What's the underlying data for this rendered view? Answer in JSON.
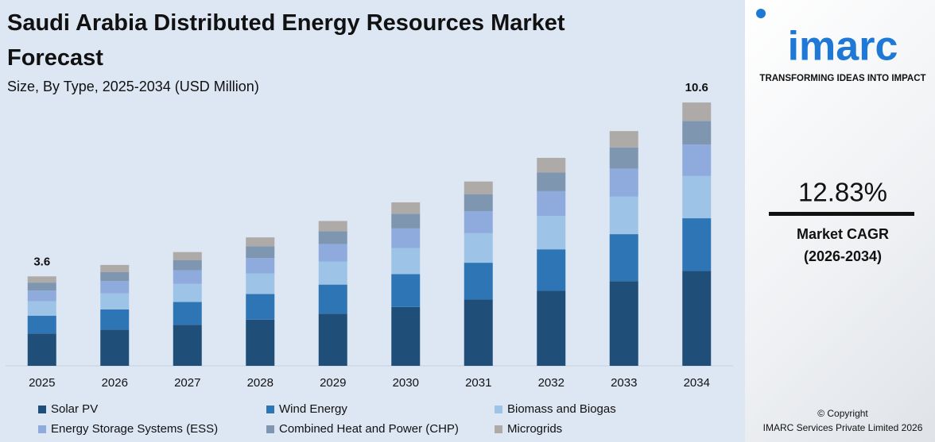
{
  "chart_data": {
    "type": "stacked_bar",
    "title": "Saudi Arabia Distributed Energy Resources Market Forecast",
    "subtitle": "Size, By Type, 2025-2034 (USD Million)",
    "categories": [
      "2025",
      "2026",
      "2027",
      "2028",
      "2029",
      "2030",
      "2031",
      "2032",
      "2033",
      "2034"
    ],
    "series": [
      {
        "name": "Solar PV",
        "color": "#1f4e79",
        "values": [
          1.3,
          1.46,
          1.65,
          1.86,
          2.1,
          2.37,
          2.67,
          3.02,
          3.41,
          3.82
        ]
      },
      {
        "name": "Wind Energy",
        "color": "#2e75b6",
        "values": [
          0.72,
          0.81,
          0.92,
          1.03,
          1.17,
          1.32,
          1.48,
          1.67,
          1.89,
          2.12
        ]
      },
      {
        "name": "Biomass and Biogas",
        "color": "#9dc3e6",
        "values": [
          0.58,
          0.65,
          0.73,
          0.83,
          0.93,
          1.05,
          1.19,
          1.34,
          1.51,
          1.7
        ]
      },
      {
        "name": "Energy Storage Systems (ESS)",
        "color": "#8faadc",
        "values": [
          0.43,
          0.49,
          0.55,
          0.62,
          0.7,
          0.79,
          0.89,
          1.0,
          1.13,
          1.27
        ]
      },
      {
        "name": "Combined Heat and Power (CHP)",
        "color": "#7f96b0",
        "values": [
          0.32,
          0.37,
          0.41,
          0.47,
          0.52,
          0.59,
          0.67,
          0.75,
          0.85,
          0.95
        ]
      },
      {
        "name": "Microgrids",
        "color": "#aeaaa8",
        "values": [
          0.25,
          0.28,
          0.32,
          0.36,
          0.41,
          0.46,
          0.52,
          0.59,
          0.66,
          0.74
        ]
      }
    ],
    "totals": [
      3.6,
      null,
      null,
      null,
      null,
      null,
      null,
      null,
      null,
      10.6
    ],
    "ylim": [
      0,
      11.5
    ]
  },
  "sidebar": {
    "logo": "imarc",
    "tagline": "TRANSFORMING IDEAS INTO IMPACT",
    "cagr": "12.83%",
    "cagr_label": "Market CAGR",
    "cagr_period": "(2026-2034)",
    "copyright": "© Copyright",
    "company": "IMARC Services Private Limited 2026"
  }
}
